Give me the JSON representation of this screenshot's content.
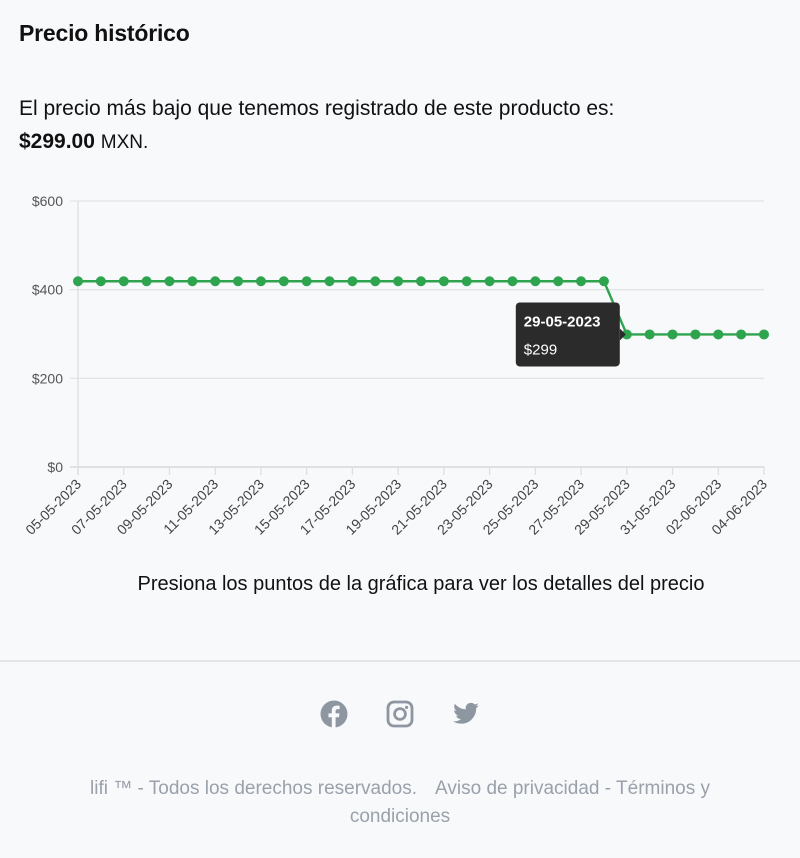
{
  "header": {
    "title": "Precio histórico"
  },
  "lowest_price": {
    "text": "El precio más bajo que tenemos registrado de este producto es:",
    "price": "$299.00",
    "currency": "MXN."
  },
  "tooltip": {
    "date": "29-05-2023",
    "value": "$299"
  },
  "hint": "Presiona los puntos de la gráfica para ver los detalles del precio",
  "footer": {
    "socials": [
      {
        "name": "facebook-icon"
      },
      {
        "name": "instagram-icon"
      },
      {
        "name": "twitter-icon"
      }
    ],
    "copyright": "lifi ™ - Todos los derechos reservados.",
    "privacy": "Aviso de privacidad",
    "separator": "-",
    "terms": "Términos y condiciones"
  },
  "colors": {
    "line": "#2ea44f",
    "tooltip_bg": "#2b2b2b",
    "grid": "#e2e4e8",
    "footer_text": "#9aa1ab"
  },
  "chart_data": {
    "type": "line",
    "title": "",
    "xlabel": "",
    "ylabel": "",
    "ylim": [
      0,
      600
    ],
    "yticks": [
      "$0",
      "$200",
      "$400",
      "$600"
    ],
    "ytick_values": [
      0,
      200,
      400,
      600
    ],
    "grid": true,
    "legend": null,
    "x": [
      "05-05-2023",
      "06-05-2023",
      "07-05-2023",
      "08-05-2023",
      "09-05-2023",
      "10-05-2023",
      "11-05-2023",
      "12-05-2023",
      "13-05-2023",
      "14-05-2023",
      "15-05-2023",
      "16-05-2023",
      "17-05-2023",
      "18-05-2023",
      "19-05-2023",
      "20-05-2023",
      "21-05-2023",
      "22-05-2023",
      "23-05-2023",
      "24-05-2023",
      "25-05-2023",
      "26-05-2023",
      "27-05-2023",
      "28-05-2023",
      "29-05-2023",
      "30-05-2023",
      "31-05-2023",
      "01-06-2023",
      "02-06-2023",
      "03-06-2023",
      "04-06-2023"
    ],
    "xtick_labels": [
      "05-05-2023",
      "07-05-2023",
      "09-05-2023",
      "11-05-2023",
      "13-05-2023",
      "15-05-2023",
      "17-05-2023",
      "19-05-2023",
      "21-05-2023",
      "23-05-2023",
      "25-05-2023",
      "27-05-2023",
      "29-05-2023",
      "31-05-2023",
      "02-06-2023",
      "04-06-2023"
    ],
    "series": [
      {
        "name": "Precio",
        "values": [
          419,
          419,
          419,
          419,
          419,
          419,
          419,
          419,
          419,
          419,
          419,
          419,
          419,
          419,
          419,
          419,
          419,
          419,
          419,
          419,
          419,
          419,
          419,
          419,
          299,
          299,
          299,
          299,
          299,
          299,
          299
        ]
      }
    ],
    "annotations": [
      {
        "type": "tooltip",
        "x": "29-05-2023",
        "label": "29-05-2023",
        "value": "$299"
      }
    ]
  }
}
